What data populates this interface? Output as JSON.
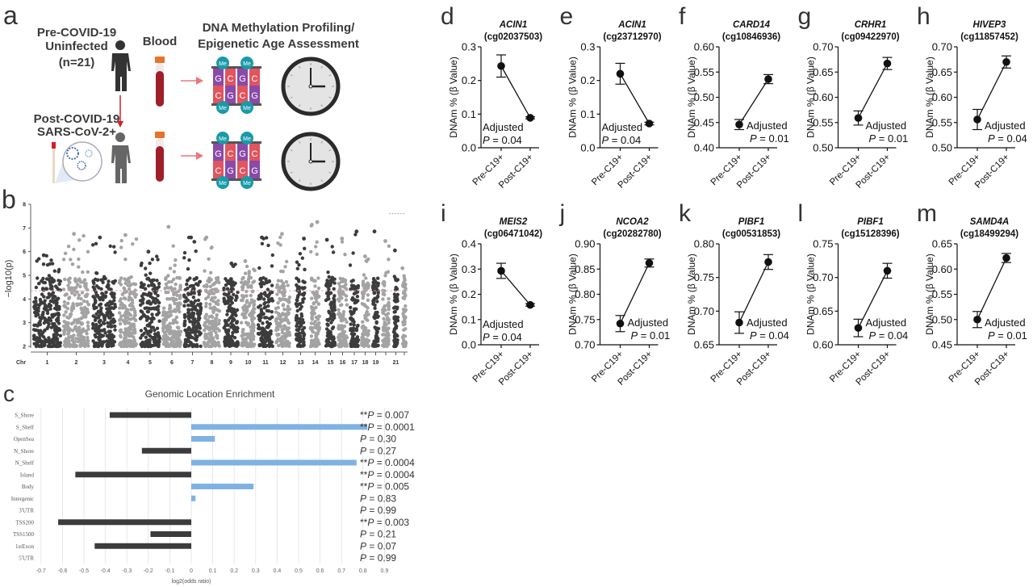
{
  "panel_a": {
    "letter": "a",
    "pre_title": [
      "Pre-COVID-19",
      "Uninfected",
      "(n=21)"
    ],
    "post_title": [
      "Post-COVID-19",
      "SARS-CoV-2+"
    ],
    "blood_label": "Blood",
    "profiling_title": [
      "DNA Methylation Profiling/",
      "Epigenetic Age Assessment"
    ],
    "methyl_label": "Me",
    "bases_top": [
      "G",
      "C",
      "G",
      "C"
    ],
    "bases_bottom": [
      "C",
      "G",
      "C",
      "G"
    ],
    "colors": {
      "purple": "#8a4aa8",
      "red": "#e0555f",
      "teal": "#1a9aa8",
      "blood": "#9e1f2a",
      "cap": "#e8732a",
      "arrow": "#e8787a"
    }
  },
  "chart_data": [
    {
      "id": "b",
      "type": "scatter",
      "subtype": "manhattan",
      "letter": "b",
      "ylabel": "−log10(p)",
      "ylim": [
        2,
        8
      ],
      "yticks": [
        "2",
        "3",
        "4",
        "5",
        "6",
        "7",
        "8"
      ],
      "xlabel_prefix": "Chr",
      "chromosomes": [
        {
          "label": "1",
          "peak": 5.85
        },
        {
          "label": "2",
          "peak": 6.75
        },
        {
          "label": "3",
          "peak": 6.6
        },
        {
          "label": "4",
          "peak": 6.7
        },
        {
          "label": "5",
          "peak": 6.0
        },
        {
          "label": "6",
          "peak": 7.05
        },
        {
          "label": "7",
          "peak": 6.6
        },
        {
          "label": "8",
          "peak": 6.6
        },
        {
          "label": "9",
          "peak": 5.5
        },
        {
          "label": "10",
          "peak": 5.6
        },
        {
          "label": "11",
          "peak": 6.6
        },
        {
          "label": "12",
          "peak": 6.75
        },
        {
          "label": "13",
          "peak": 6.55
        },
        {
          "label": "14",
          "peak": 7.25
        },
        {
          "label": "15",
          "peak": 6.5
        },
        {
          "label": "16",
          "peak": 6.55
        },
        {
          "label": "17",
          "peak": 6.85
        },
        {
          "label": "18",
          "peak": 5.8
        },
        {
          "label": "19",
          "peak": 6.85
        },
        {
          "label": "",
          "peak": 6.45
        },
        {
          "label": "21",
          "peak": 6.05
        },
        {
          "label": "",
          "peak": 5.3
        }
      ],
      "threshold": 4.35,
      "colors": {
        "odd": "#3c3c3c",
        "even": "#a3a3a3",
        "threshold": "#e3a6a6",
        "legend_line": "#7b8fc4"
      }
    },
    {
      "id": "c",
      "type": "bar",
      "orientation": "horizontal",
      "letter": "c",
      "title": "Genomic Location Enrichment",
      "xlabel": "log2(odds ratio)",
      "xlim": [
        -0.7,
        0.9
      ],
      "xticks": [
        "-0.7",
        "-0.6",
        "-0.5",
        "-0.4",
        "-0.3",
        "-0.2",
        "-0.1",
        "0",
        "0.1",
        "0.2",
        "0.3",
        "0.4",
        "0.5",
        "0.6",
        "0.7",
        "0.8",
        "0.9"
      ],
      "grid": true,
      "colors": {
        "positive": "#7fb2e3",
        "negative": "#3b3b3d"
      },
      "categories": [
        "S_Shore",
        "S_Shelf",
        "OpenSea",
        "N_Shore",
        "N_Shelf",
        "Island",
        "Body",
        "Intergenic",
        "3'UTR",
        "TSS200",
        "TSS1500",
        "1stExon",
        "5'UTR"
      ],
      "values": [
        -0.38,
        0.82,
        0.11,
        -0.23,
        0.77,
        -0.54,
        0.29,
        0.02,
        0,
        -0.62,
        -0.19,
        -0.45,
        0
      ],
      "annotations": [
        {
          "stars": "**",
          "p": "P",
          "value": " = 0.007"
        },
        {
          "stars": "**",
          "p": "P",
          "value": " = 0.0001"
        },
        {
          "stars": "",
          "p": "P",
          "value": " = 0.30"
        },
        {
          "stars": "",
          "p": "P",
          "value": " = 0.27"
        },
        {
          "stars": "**",
          "p": "P",
          "value": " = 0.0004"
        },
        {
          "stars": "**",
          "p": "P",
          "value": " = 0.0004"
        },
        {
          "stars": "**",
          "p": "P",
          "value": " = 0.005"
        },
        {
          "stars": "",
          "p": "P",
          "value": " = 0.83"
        },
        {
          "stars": "",
          "p": "P",
          "value": " = 0.99"
        },
        {
          "stars": "**",
          "p": "P",
          "value": " = 0.003"
        },
        {
          "stars": "",
          "p": "P",
          "value": " = 0.21"
        },
        {
          "stars": "",
          "p": "P",
          "value": " = 0.07"
        },
        {
          "stars": "",
          "p": "P",
          "value": " = 0.99"
        }
      ]
    },
    {
      "id": "d",
      "type": "line",
      "letter": "d",
      "gene": "ACIN1",
      "probe": "(cg02037503)",
      "ylabel": "DNAm % (β Value)",
      "categories": [
        "Pre-C19+",
        "Post-C19+"
      ],
      "values": [
        0.243,
        0.089
      ],
      "errors": [
        0.033,
        0.003
      ],
      "ylim": [
        0,
        0.3
      ],
      "yticks": [
        "0.0",
        "0.1",
        "0.2",
        "0.3"
      ],
      "annotation": [
        "Adjusted",
        "P",
        " = 0.04"
      ]
    },
    {
      "id": "e",
      "type": "line",
      "letter": "e",
      "gene": "ACIN1",
      "probe": "(cg23712970)",
      "ylabel": "DNAm % (β Value)",
      "categories": [
        "Pre-C19+",
        "Post-C19+"
      ],
      "values": [
        0.22,
        0.072
      ],
      "errors": [
        0.031,
        0.004
      ],
      "ylim": [
        0,
        0.3
      ],
      "yticks": [
        "0.0",
        "0.1",
        "0.2",
        "0.3"
      ],
      "annotation": [
        "Adjusted",
        "P",
        " = 0.04"
      ]
    },
    {
      "id": "f",
      "type": "line",
      "letter": "f",
      "gene": "CARD14",
      "probe": "(cg10846936)",
      "ylabel": "DNAm % (β Value)",
      "categories": [
        "Pre-C19+",
        "Post-C19+"
      ],
      "values": [
        0.446,
        0.536
      ],
      "errors": [
        0.01,
        0.009
      ],
      "ylim": [
        0.4,
        0.6
      ],
      "yticks": [
        "0.40",
        "0.45",
        "0.50",
        "0.55",
        "0.60"
      ],
      "annotation": [
        "Adjusted",
        "P",
        " = 0.01"
      ]
    },
    {
      "id": "g",
      "type": "line",
      "letter": "g",
      "gene": "CRHR1",
      "probe": "(cg09422970)",
      "ylabel": "DNAm % (β Value)",
      "categories": [
        "Pre-C19+",
        "Post-C19+"
      ],
      "values": [
        0.559,
        0.667
      ],
      "errors": [
        0.014,
        0.012
      ],
      "ylim": [
        0.5,
        0.7
      ],
      "yticks": [
        "0.50",
        "0.55",
        "0.60",
        "0.65",
        "0.70"
      ],
      "annotation": [
        "Adjusted",
        "P",
        " = 0.01"
      ]
    },
    {
      "id": "h",
      "type": "line",
      "letter": "h",
      "gene": "HIVEP3",
      "probe": "(cg11857452)",
      "ylabel": "DNAm % (β Value)",
      "categories": [
        "Pre-C19+",
        "Post-C19+"
      ],
      "values": [
        0.556,
        0.67
      ],
      "errors": [
        0.02,
        0.012
      ],
      "ylim": [
        0.5,
        0.7
      ],
      "yticks": [
        "0.50",
        "0.55",
        "0.60",
        "0.65",
        "0.70"
      ],
      "annotation": [
        "Adjusted",
        "P",
        " = 0.04"
      ]
    },
    {
      "id": "i",
      "type": "line",
      "letter": "i",
      "gene": "MEIS2",
      "probe": "(cg06471042)",
      "ylabel": "DNAm % (β Value)",
      "categories": [
        "Pre-C19+",
        "Post-C19+"
      ],
      "values": [
        0.293,
        0.158
      ],
      "errors": [
        0.03,
        0.005
      ],
      "ylim": [
        0,
        0.4
      ],
      "yticks": [
        "0.0",
        "0.1",
        "0.2",
        "0.3",
        "0.4"
      ],
      "annotation": [
        "Adjusted",
        "P",
        " = 0.04"
      ]
    },
    {
      "id": "j",
      "type": "line",
      "letter": "j",
      "gene": "NCOA2",
      "probe": "(cg20282780)",
      "ylabel": "DNAm % (β Value)",
      "categories": [
        "Pre-C19+",
        "Post-C19+"
      ],
      "values": [
        0.742,
        0.862
      ],
      "errors": [
        0.016,
        0.008
      ],
      "ylim": [
        0.7,
        0.9
      ],
      "yticks": [
        "0.70",
        "0.75",
        "0.80",
        "0.85",
        "0.90"
      ],
      "annotation": [
        "Adjusted",
        "P",
        " = 0.01"
      ]
    },
    {
      "id": "k",
      "type": "line",
      "letter": "k",
      "gene": "PIBF1",
      "probe": "(cg00531853)",
      "ylabel": "DNAm % (β Value)",
      "categories": [
        "Pre-C19+",
        "Post-C19+"
      ],
      "values": [
        0.683,
        0.773
      ],
      "errors": [
        0.016,
        0.011
      ],
      "ylim": [
        0.65,
        0.8
      ],
      "yticks": [
        "0.65",
        "0.70",
        "0.75",
        "0.80"
      ],
      "annotation": [
        "Adjusted",
        "P",
        " = 0.04"
      ]
    },
    {
      "id": "l",
      "type": "line",
      "letter": "l",
      "gene": "PIBF1",
      "probe": "(cg15128396)",
      "ylabel": "DNAm % (β Value)",
      "categories": [
        "Pre-C19+",
        "Post-C19+"
      ],
      "values": [
        0.625,
        0.71
      ],
      "errors": [
        0.013,
        0.011
      ],
      "ylim": [
        0.6,
        0.75
      ],
      "yticks": [
        "0.60",
        "0.65",
        "0.70",
        "0.75"
      ],
      "annotation": [
        "Adjusted",
        "P",
        " = 0.04"
      ]
    },
    {
      "id": "m",
      "type": "line",
      "letter": "m",
      "gene": "SAMD4A",
      "probe": "(cg18499294)",
      "ylabel": "DNAm % (β Value)",
      "categories": [
        "Pre-C19+",
        "Post-C19+"
      ],
      "values": [
        0.5,
        0.622
      ],
      "errors": [
        0.016,
        0.009
      ],
      "ylim": [
        0.45,
        0.65
      ],
      "yticks": [
        "0.45",
        "0.50",
        "0.55",
        "0.60",
        "0.65"
      ],
      "annotation": [
        "Adjusted",
        "P",
        " = 0.01"
      ]
    }
  ]
}
